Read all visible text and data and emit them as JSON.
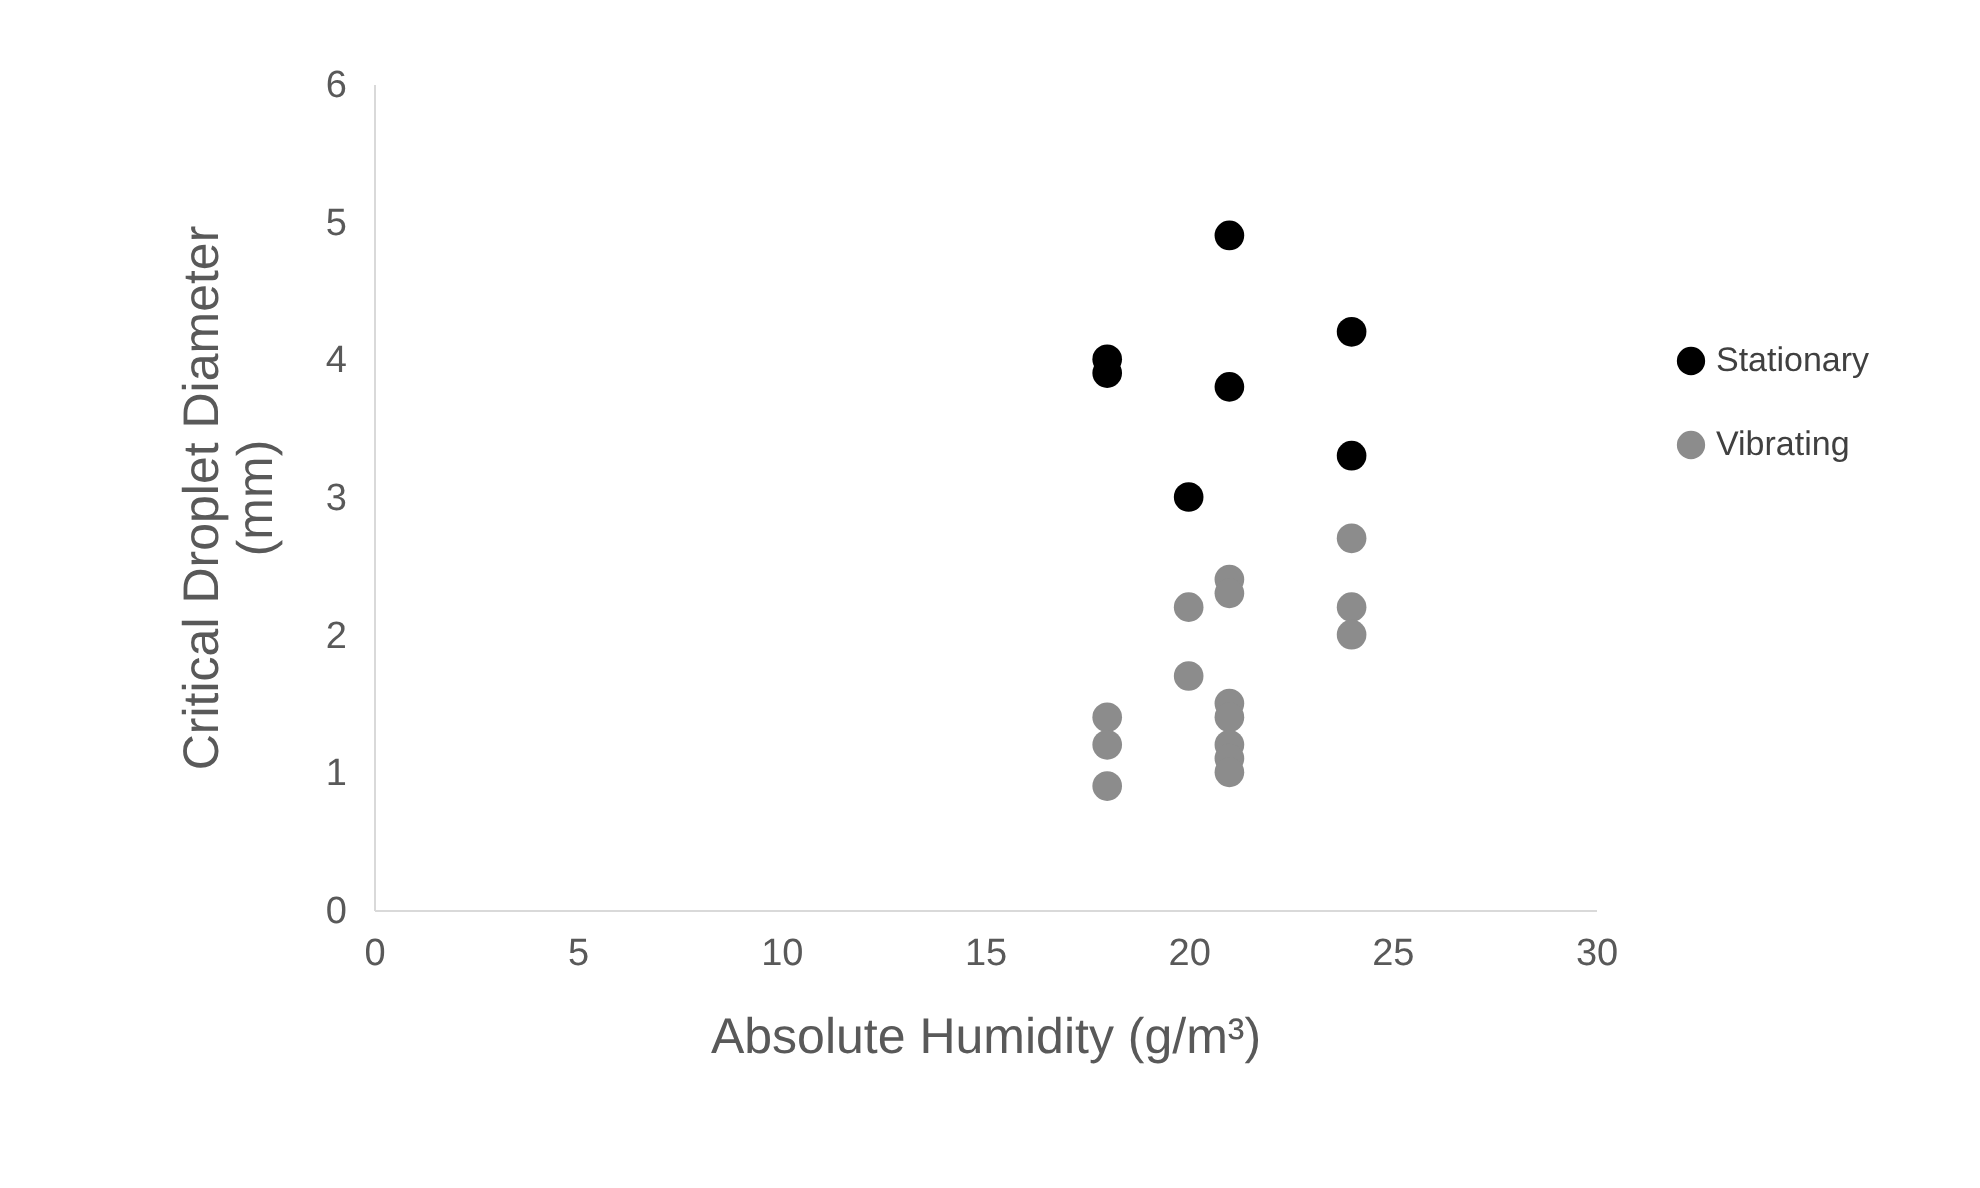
{
  "chart_data": {
    "type": "scatter",
    "xlabel": "Absolute Humidity (g/m³)",
    "ylabel": "Critical Droplet Diameter (mm)",
    "xlim": [
      0,
      30
    ],
    "xticks": [
      0,
      5,
      10,
      15,
      20,
      25,
      30
    ],
    "ylim": [
      0,
      6
    ],
    "yticks": [
      0,
      1,
      2,
      3,
      4,
      5,
      6
    ],
    "grid": false,
    "legend": "right",
    "marker": "circle",
    "series": [
      {
        "name": "Stationary",
        "color": "#000000",
        "x": [
          18,
          18,
          21,
          21,
          20,
          24,
          24
        ],
        "values": [
          4.0,
          3.9,
          4.9,
          3.8,
          3.0,
          4.2,
          3.3
        ]
      },
      {
        "name": "Vibrating",
        "color": "#8c8c8c",
        "x": [
          18,
          18,
          18,
          20,
          20,
          21,
          21,
          21,
          21,
          21,
          21,
          21,
          24,
          24,
          24
        ],
        "values": [
          1.4,
          1.2,
          0.9,
          2.2,
          1.7,
          2.4,
          2.3,
          1.5,
          1.4,
          1.2,
          1.1,
          1.0,
          2.7,
          2.2,
          2.0
        ]
      }
    ]
  }
}
